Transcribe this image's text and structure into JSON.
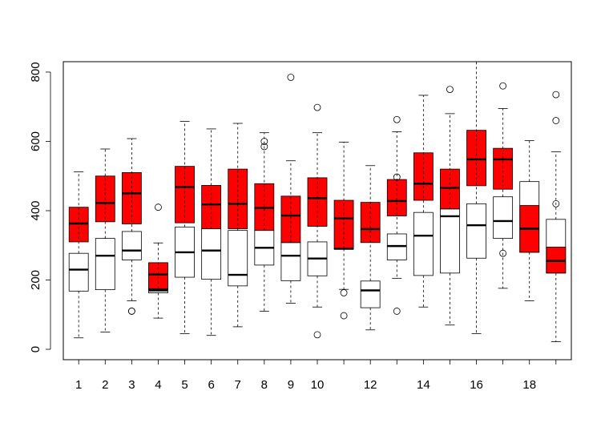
{
  "chart_data": {
    "type": "boxplot",
    "title": "",
    "xlabel": "",
    "ylabel": "",
    "ylim": [
      -30,
      830
    ],
    "y_ticks": [
      "0",
      "200",
      "400",
      "600",
      "800"
    ],
    "x_tick_labels": [
      "1",
      "2",
      "3",
      "4",
      "5",
      "6",
      "7",
      "8",
      "9",
      "10",
      "12",
      "14",
      "16",
      "18"
    ],
    "colors": {
      "red_series": "#ff0000",
      "white_series": "#ffffff",
      "stroke": "#000000"
    },
    "boxes": [
      {
        "pos": 1,
        "fill": "red",
        "whisker_low": 310,
        "q1": 310,
        "median": 363,
        "q3": 410,
        "whisker_high": 410,
        "outliers": []
      },
      {
        "pos": 1,
        "fill": "white",
        "whisker_low": 33,
        "q1": 168,
        "median": 230,
        "q3": 277,
        "whisker_high": 512,
        "outliers": []
      },
      {
        "pos": 2,
        "fill": "red",
        "whisker_low": 368,
        "q1": 368,
        "median": 422,
        "q3": 500,
        "whisker_high": 500,
        "outliers": []
      },
      {
        "pos": 2,
        "fill": "white",
        "whisker_low": 50,
        "q1": 172,
        "median": 270,
        "q3": 320,
        "whisker_high": 578,
        "outliers": []
      },
      {
        "pos": 3,
        "fill": "red",
        "whisker_low": 362,
        "q1": 362,
        "median": 450,
        "q3": 510,
        "whisker_high": 510,
        "outliers": []
      },
      {
        "pos": 3,
        "fill": "white",
        "whisker_low": 140,
        "q1": 258,
        "median": 285,
        "q3": 340,
        "whisker_high": 608,
        "outliers": [
          110,
          110
        ]
      },
      {
        "pos": 4,
        "fill": "red",
        "whisker_low": 173,
        "q1": 173,
        "median": 216,
        "q3": 250,
        "whisker_high": 250,
        "outliers": [
          410
        ]
      },
      {
        "pos": 4,
        "fill": "white",
        "whisker_low": 90,
        "q1": 163,
        "median": 170,
        "q3": 175,
        "whisker_high": 307,
        "outliers": []
      },
      {
        "pos": 5,
        "fill": "red",
        "whisker_low": 365,
        "q1": 365,
        "median": 468,
        "q3": 528,
        "whisker_high": 528,
        "outliers": []
      },
      {
        "pos": 5,
        "fill": "white",
        "whisker_low": 45,
        "q1": 208,
        "median": 280,
        "q3": 353,
        "whisker_high": 658,
        "outliers": []
      },
      {
        "pos": 6,
        "fill": "red",
        "whisker_low": 348,
        "q1": 348,
        "median": 418,
        "q3": 473,
        "whisker_high": 473,
        "outliers": []
      },
      {
        "pos": 6,
        "fill": "white",
        "whisker_low": 40,
        "q1": 202,
        "median": 285,
        "q3": 348,
        "whisker_high": 636,
        "outliers": []
      },
      {
        "pos": 7,
        "fill": "red",
        "whisker_low": 348,
        "q1": 348,
        "median": 420,
        "q3": 520,
        "whisker_high": 520,
        "outliers": []
      },
      {
        "pos": 7,
        "fill": "white",
        "whisker_low": 65,
        "q1": 183,
        "median": 215,
        "q3": 343,
        "whisker_high": 652,
        "outliers": []
      },
      {
        "pos": 8,
        "fill": "red",
        "whisker_low": 343,
        "q1": 343,
        "median": 408,
        "q3": 478,
        "whisker_high": 478,
        "outliers": []
      },
      {
        "pos": 8,
        "fill": "white",
        "whisker_low": 110,
        "q1": 243,
        "median": 293,
        "q3": 343,
        "whisker_high": 625,
        "outliers": [
          585,
          600
        ]
      },
      {
        "pos": 9,
        "fill": "red",
        "whisker_low": 308,
        "q1": 308,
        "median": 386,
        "q3": 442,
        "whisker_high": 442,
        "outliers": []
      },
      {
        "pos": 9,
        "fill": "white",
        "whisker_low": 133,
        "q1": 198,
        "median": 270,
        "q3": 308,
        "whisker_high": 544,
        "outliers": [
          785
        ]
      },
      {
        "pos": 10,
        "fill": "red",
        "whisker_low": 355,
        "q1": 355,
        "median": 436,
        "q3": 495,
        "whisker_high": 495,
        "outliers": []
      },
      {
        "pos": 10,
        "fill": "white",
        "whisker_low": 122,
        "q1": 212,
        "median": 262,
        "q3": 310,
        "whisker_high": 625,
        "outliers": [
          698,
          42
        ]
      },
      {
        "pos": 11,
        "fill": "red",
        "whisker_low": 290,
        "q1": 290,
        "median": 378,
        "q3": 430,
        "whisker_high": 430,
        "outliers": []
      },
      {
        "pos": 11,
        "fill": "white",
        "whisker_low": 173,
        "q1": 290,
        "median": 290,
        "q3": 290,
        "whisker_high": 598,
        "outliers": [
          163,
          97
        ]
      },
      {
        "pos": 12,
        "fill": "red",
        "whisker_low": 308,
        "q1": 308,
        "median": 347,
        "q3": 424,
        "whisker_high": 424,
        "outliers": []
      },
      {
        "pos": 12,
        "fill": "white",
        "whisker_low": 56,
        "q1": 120,
        "median": 170,
        "q3": 197,
        "whisker_high": 530,
        "outliers": []
      },
      {
        "pos": 13,
        "fill": "red",
        "whisker_low": 385,
        "q1": 385,
        "median": 428,
        "q3": 490,
        "whisker_high": 490,
        "outliers": []
      },
      {
        "pos": 13,
        "fill": "white",
        "whisker_low": 205,
        "q1": 258,
        "median": 298,
        "q3": 333,
        "whisker_high": 628,
        "outliers": [
          663,
          110,
          497
        ]
      },
      {
        "pos": 14,
        "fill": "red",
        "whisker_low": 430,
        "q1": 430,
        "median": 478,
        "q3": 567,
        "whisker_high": 567,
        "outliers": []
      },
      {
        "pos": 14,
        "fill": "white",
        "whisker_low": 122,
        "q1": 213,
        "median": 328,
        "q3": 395,
        "whisker_high": 733,
        "outliers": []
      },
      {
        "pos": 15,
        "fill": "red",
        "whisker_low": 405,
        "q1": 405,
        "median": 466,
        "q3": 520,
        "whisker_high": 520,
        "outliers": []
      },
      {
        "pos": 15,
        "fill": "white",
        "whisker_low": 70,
        "q1": 220,
        "median": 384,
        "q3": 405,
        "whisker_high": 680,
        "outliers": [
          750
        ]
      },
      {
        "pos": 16,
        "fill": "red",
        "whisker_low": 472,
        "q1": 472,
        "median": 548,
        "q3": 632,
        "whisker_high": 632,
        "outliers": []
      },
      {
        "pos": 16,
        "fill": "white",
        "whisker_low": 45,
        "q1": 263,
        "median": 358,
        "q3": 420,
        "whisker_high": 835,
        "outliers": []
      },
      {
        "pos": 17,
        "fill": "red",
        "whisker_low": 462,
        "q1": 462,
        "median": 548,
        "q3": 580,
        "whisker_high": 580,
        "outliers": []
      },
      {
        "pos": 17,
        "fill": "white",
        "whisker_low": 176,
        "q1": 320,
        "median": 370,
        "q3": 440,
        "whisker_high": 695,
        "outliers": [
          760,
          277
        ]
      },
      {
        "pos": 18,
        "fill": "red",
        "whisker_low": 280,
        "q1": 280,
        "median": 348,
        "q3": 415,
        "whisker_high": 415,
        "outliers": []
      },
      {
        "pos": 18,
        "fill": "white",
        "whisker_low": 140,
        "q1": 280,
        "median": 348,
        "q3": 484,
        "whisker_high": 602,
        "outliers": []
      },
      {
        "pos": 19,
        "fill": "red",
        "whisker_low": 220,
        "q1": 220,
        "median": 255,
        "q3": 295,
        "whisker_high": 295,
        "outliers": []
      },
      {
        "pos": 19,
        "fill": "white",
        "whisker_low": 22,
        "q1": 220,
        "median": 255,
        "q3": 375,
        "whisker_high": 570,
        "outliers": [
          735,
          660,
          420
        ]
      }
    ]
  }
}
